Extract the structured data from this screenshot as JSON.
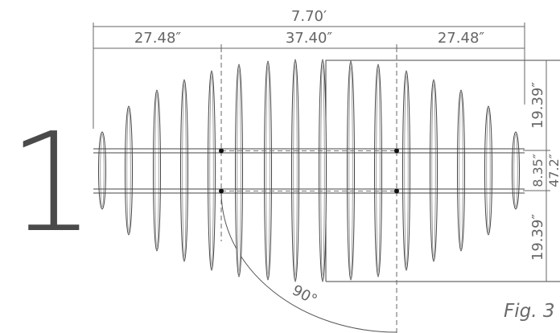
{
  "figure_number": "1",
  "figure_label": "Fig. 3",
  "dimensions": {
    "overall_width": "7.70′",
    "left_segment": "27.48″",
    "center_segment": "37.40″",
    "right_segment": "27.48″",
    "top_height": "19.39″",
    "middle_height": "8.35″",
    "bottom_height": "19.39″",
    "total_height": "47.2″",
    "door_angle": "90°"
  }
}
